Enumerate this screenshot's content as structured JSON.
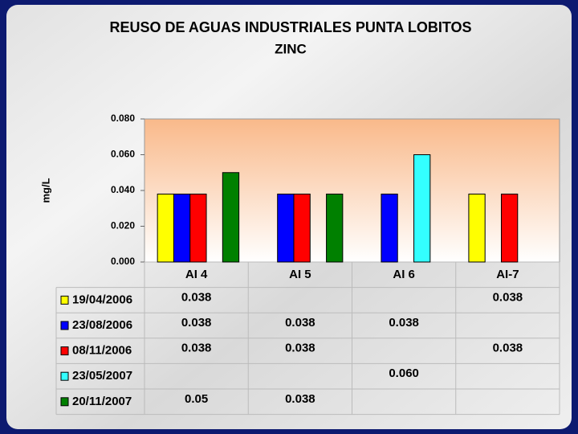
{
  "chart_data": {
    "type": "bar",
    "title": "REUSO DE AGUAS INDUSTRIALES PUNTA LOBITOS",
    "subtitle": "ZINC",
    "y_label": "mg/L",
    "categories": [
      "AI 4",
      "AI 5",
      "AI 6",
      "AI-7"
    ],
    "series": [
      {
        "name": "19/04/2006",
        "color": "#ffff00",
        "values": [
          0.038,
          null,
          null,
          0.038
        ],
        "value_labels": [
          "0.038",
          null,
          null,
          "0.038"
        ]
      },
      {
        "name": "23/08/2006",
        "color": "#0000ff",
        "values": [
          0.038,
          0.038,
          0.038,
          null
        ],
        "value_labels": [
          "0.038",
          "0.038",
          "0.038",
          null
        ]
      },
      {
        "name": "08/11/2006",
        "color": "#ff0000",
        "values": [
          0.038,
          0.038,
          null,
          0.038
        ],
        "value_labels": [
          "0.038",
          "0.038",
          null,
          "0.038"
        ]
      },
      {
        "name": "23/05/2007",
        "color": "#33ffff",
        "values": [
          null,
          null,
          0.06,
          null
        ],
        "value_labels": [
          null,
          null,
          "0.060",
          null
        ]
      },
      {
        "name": "20/11/2007",
        "color": "#008000",
        "values": [
          0.05,
          0.038,
          null,
          null
        ],
        "value_labels": [
          "0.05",
          "0.038",
          null,
          null
        ]
      }
    ],
    "ylim": [
      0,
      0.08
    ],
    "yticks": [
      {
        "value": 0,
        "label": "0.000"
      },
      {
        "value": 0.02,
        "label": "0.020"
      },
      {
        "value": 0.04,
        "label": "0.040"
      },
      {
        "value": 0.06,
        "label": "0.060"
      },
      {
        "value": 0.08,
        "label": "0.080"
      }
    ]
  }
}
